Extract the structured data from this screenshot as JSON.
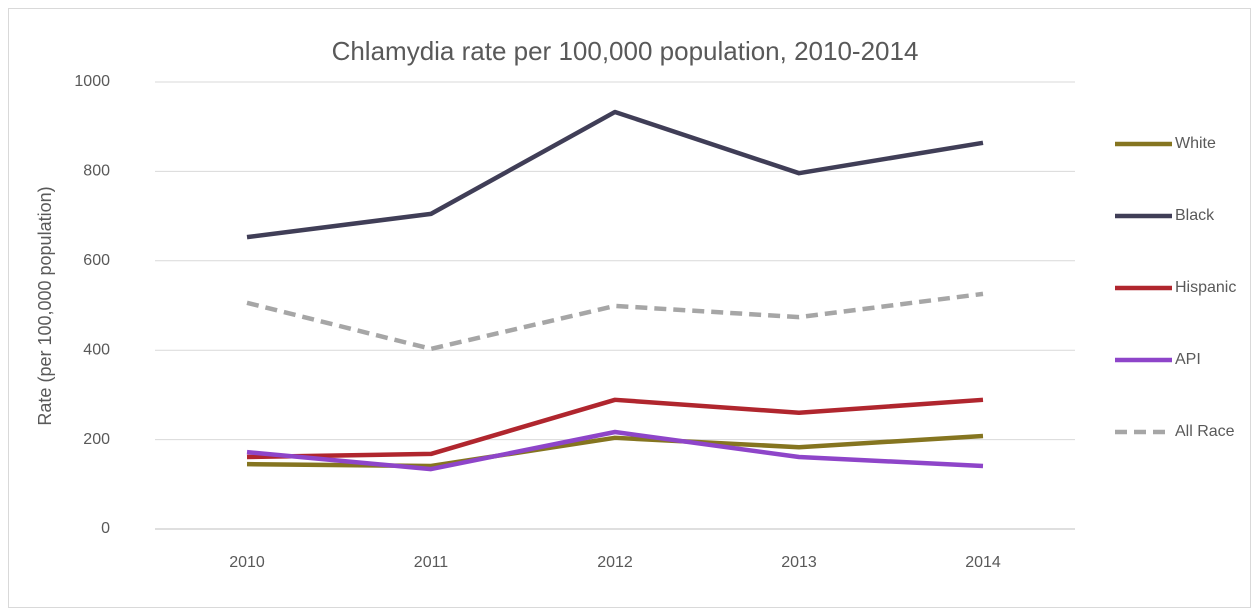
{
  "chart_data": {
    "type": "line",
    "title": "Chlamydia rate per 100,000 population, 2010-2014",
    "y_label": "Rate (per 100,000 population)",
    "categories": [
      "2010",
      "2011",
      "2012",
      "2013",
      "2014"
    ],
    "series": [
      {
        "name": "White",
        "color": "#857520",
        "dashed": false,
        "values": [
          145,
          141,
          204,
          183,
          208
        ]
      },
      {
        "name": "Black",
        "color": "#403e57",
        "dashed": false,
        "values": [
          653,
          705,
          933,
          796,
          864
        ]
      },
      {
        "name": "Hispanic",
        "color": "#b0262e",
        "dashed": false,
        "values": [
          161,
          168,
          289,
          260,
          289
        ]
      },
      {
        "name": "API",
        "color": "#8e45c9",
        "dashed": false,
        "values": [
          172,
          134,
          217,
          161,
          141
        ]
      },
      {
        "name": "All Race",
        "color": "#a6a6a6",
        "dashed": true,
        "values": [
          506,
          403,
          499,
          474,
          526
        ]
      }
    ],
    "ylim": [
      0,
      1000
    ],
    "yticks": [
      0,
      200,
      400,
      600,
      800,
      1000
    ],
    "grid": true,
    "legend": "right"
  }
}
